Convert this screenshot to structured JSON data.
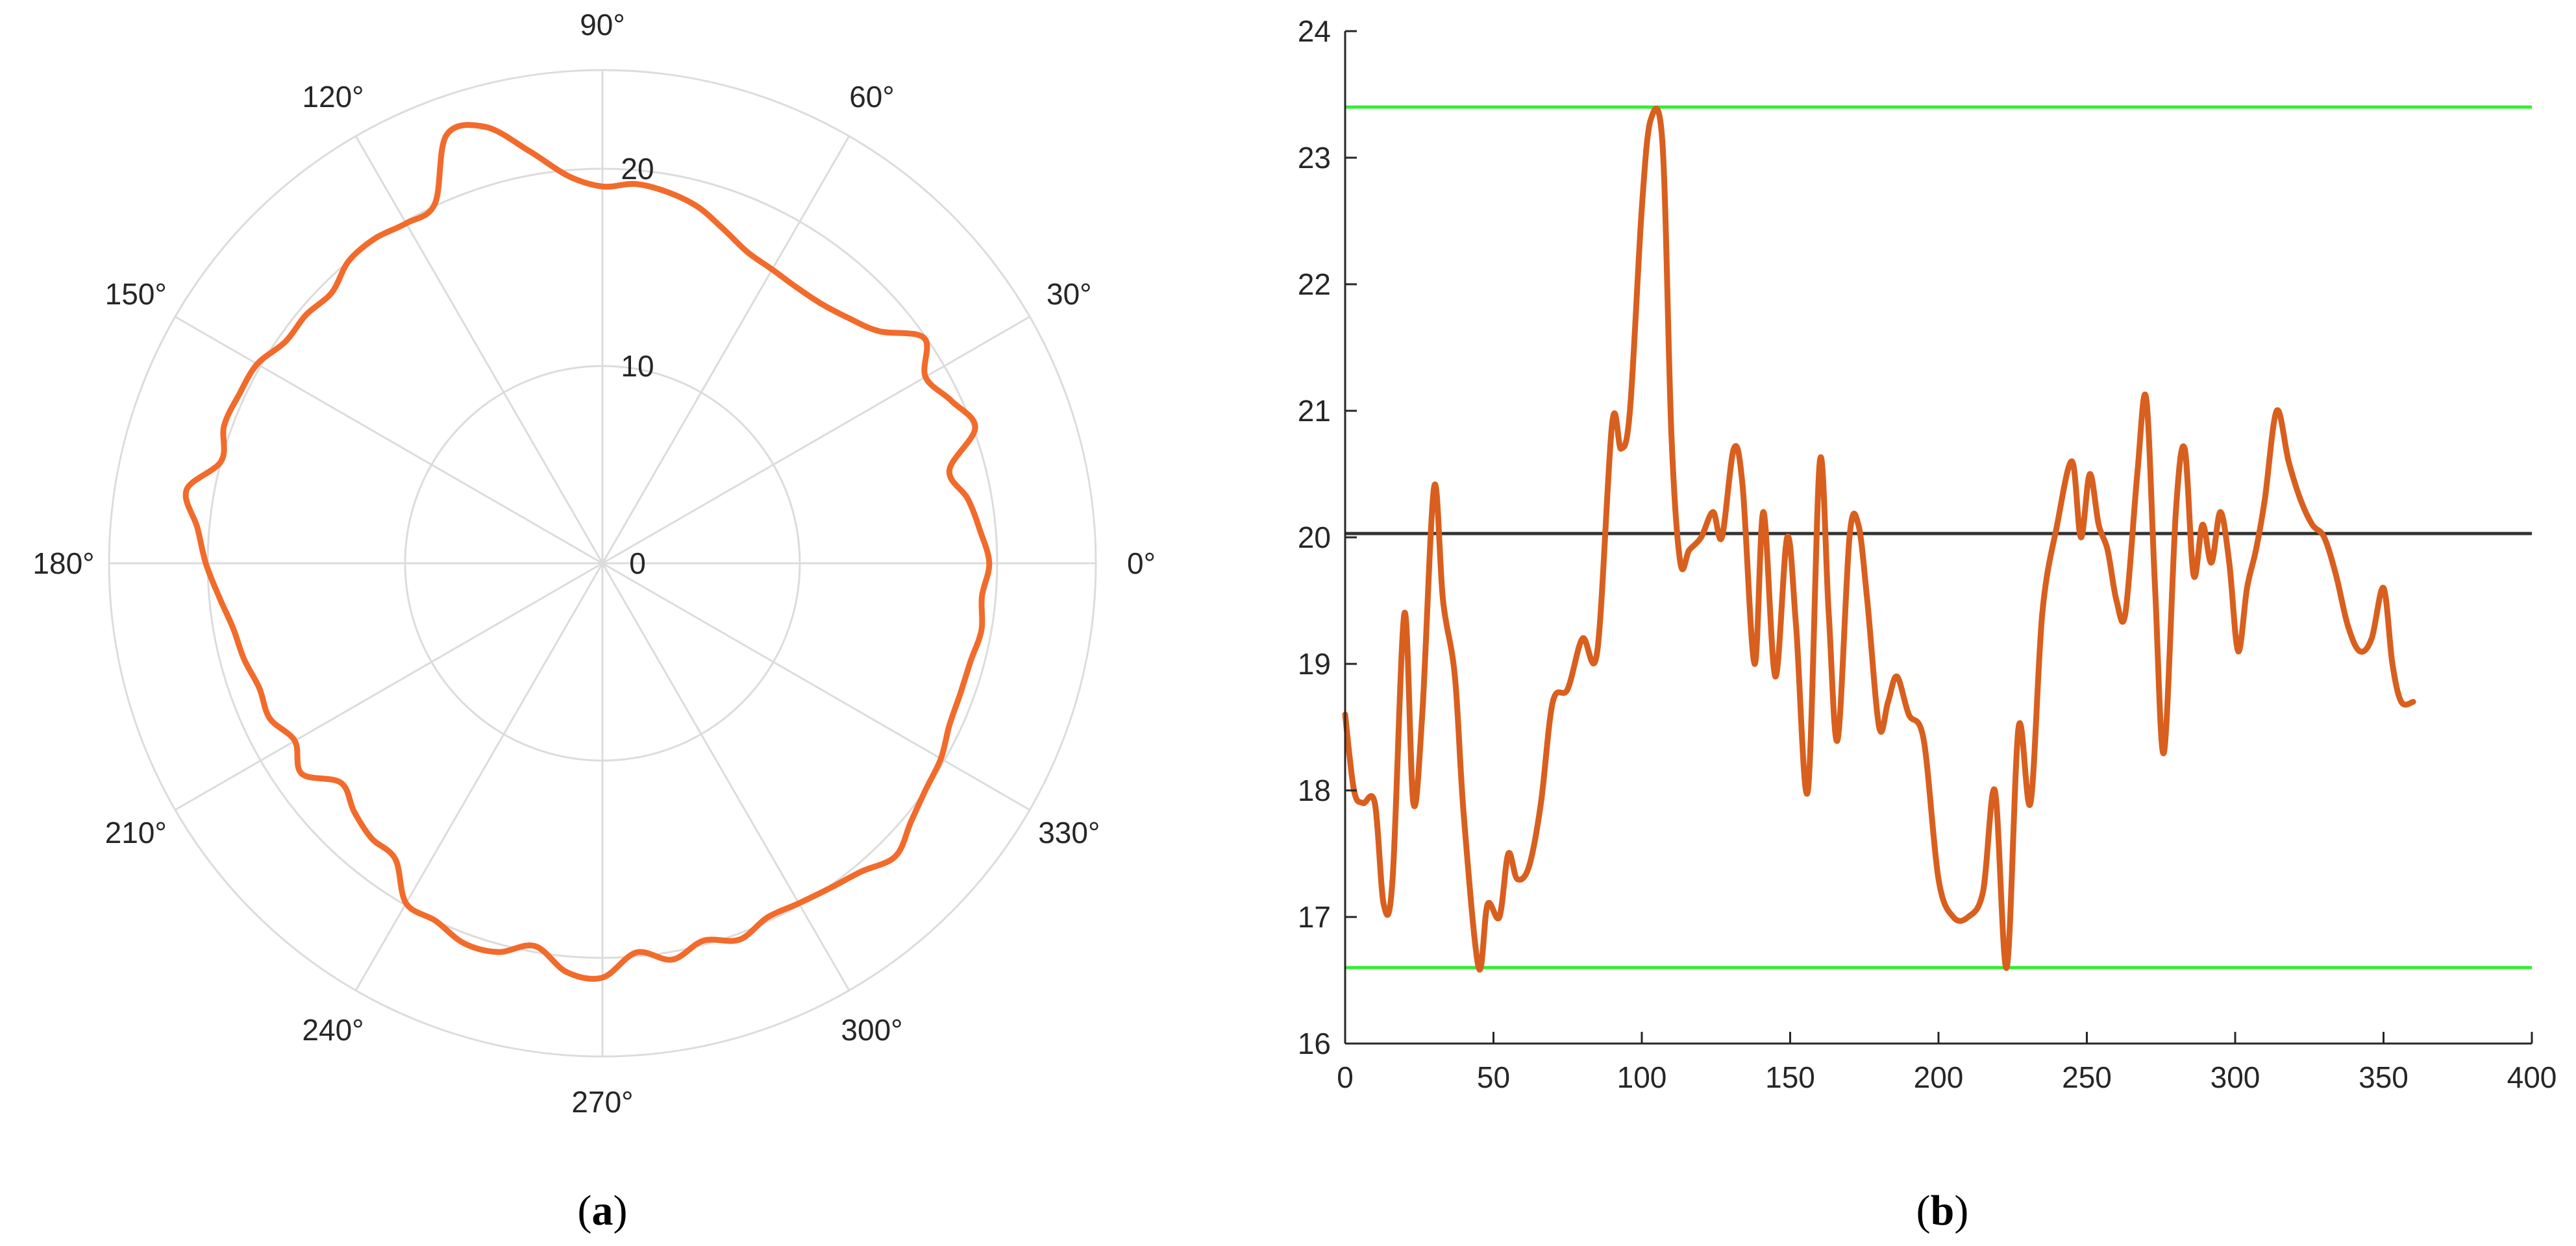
{
  "chart_data": [
    {
      "type": "line",
      "subtype": "polar",
      "caption_letter": "a",
      "angle_tick_labels": [
        "0°",
        "30°",
        "60°",
        "90°",
        "120°",
        "150°",
        "180°",
        "210°",
        "240°",
        "270°",
        "300°",
        "330°"
      ],
      "radial_tick_labels": [
        "0",
        "10",
        "20"
      ],
      "rlim": [
        0,
        25
      ],
      "grid": true,
      "series": [
        {
          "color": "#F26B2B",
          "theta": [
            0,
            5,
            10,
            15,
            20,
            25,
            30,
            35,
            40,
            45,
            50,
            55,
            60,
            65,
            70,
            75,
            80,
            85,
            90,
            95,
            100,
            105,
            110,
            115,
            120,
            125,
            130,
            135,
            140,
            145,
            150,
            155,
            160,
            165,
            170,
            175,
            180,
            185,
            190,
            195,
            200,
            205,
            210,
            215,
            220,
            225,
            230,
            235,
            240,
            245,
            250,
            255,
            260,
            265,
            270,
            275,
            280,
            285,
            290,
            295,
            300,
            305,
            310,
            315,
            320,
            325,
            330,
            335,
            340,
            345,
            350,
            355,
            360
          ],
          "r": [
            19.6,
            19.2,
            18.8,
            18.2,
            20.1,
            19.5,
            18.9,
            19.9,
            18.3,
            17.6,
            17.2,
            17.1,
            17.2,
            17.4,
            18.0,
            18.7,
            19.1,
            19.3,
            19.1,
            19.7,
            21.2,
            22.9,
            23.1,
            20.1,
            19.9,
            20.1,
            20.0,
            19.4,
            19.6,
            19.6,
            20.2,
            20.3,
            20.4,
            20.0,
            21.4,
            20.6,
            20.1,
            19.5,
            19.0,
            18.8,
            18.5,
            18.6,
            18.0,
            18.6,
            17.3,
            17.8,
            18.2,
            18.3,
            19.9,
            20.0,
            20.5,
            20.4,
            19.7,
            20.8,
            21.0,
            19.8,
            20.4,
            19.8,
            20.3,
            19.8,
            19.9,
            20.1,
            20.4,
            21.0,
            20.4,
            20.0,
            19.8,
            19.4,
            19.3,
            19.3,
            19.5,
            19.3,
            19.6
          ]
        }
      ]
    },
    {
      "type": "line",
      "caption_letter": "b",
      "xlim": [
        0,
        400
      ],
      "ylim": [
        16,
        24
      ],
      "x_ticks": [
        0,
        50,
        100,
        150,
        200,
        250,
        300,
        350,
        400
      ],
      "y_ticks": [
        16,
        17,
        18,
        19,
        20,
        21,
        22,
        23,
        24
      ],
      "reference_lines": [
        {
          "y": 23.4,
          "color": "#33EE33"
        },
        {
          "y": 20.03,
          "color": "#333333"
        },
        {
          "y": 16.6,
          "color": "#33EE33"
        }
      ],
      "series": [
        {
          "color": "#D95F1E",
          "x": [
            0,
            3,
            6,
            10,
            13,
            16,
            20,
            23,
            26,
            30,
            33,
            37,
            40,
            45,
            48,
            52,
            55,
            58,
            62,
            66,
            70,
            75,
            80,
            85,
            90,
            93,
            96,
            100,
            103,
            107,
            110,
            113,
            116,
            120,
            124,
            127,
            131,
            134,
            138,
            141,
            145,
            149,
            152,
            156,
            160,
            163,
            166,
            170,
            173,
            176,
            180,
            183,
            186,
            190,
            195,
            200,
            205,
            210,
            215,
            219,
            223,
            227,
            231,
            235,
            240,
            245,
            248,
            251,
            254,
            257,
            260,
            263,
            267,
            270,
            273,
            276,
            280,
            283,
            286,
            289,
            292,
            295,
            298,
            301,
            304,
            307,
            310,
            314,
            318,
            322,
            326,
            330,
            334,
            338,
            342,
            346,
            350,
            353,
            356,
            360
          ],
          "y": [
            18.6,
            18.0,
            17.9,
            17.9,
            17.1,
            17.3,
            19.4,
            17.9,
            18.6,
            20.4,
            19.5,
            18.9,
            17.8,
            16.6,
            17.1,
            17.0,
            17.5,
            17.3,
            17.4,
            17.9,
            18.7,
            18.8,
            19.2,
            19.1,
            20.9,
            20.7,
            21.0,
            22.6,
            23.3,
            23.1,
            20.8,
            19.8,
            19.9,
            20.0,
            20.2,
            20.0,
            20.7,
            20.4,
            19.0,
            20.2,
            18.9,
            20.0,
            19.3,
            18.0,
            20.6,
            19.4,
            18.4,
            20.0,
            20.1,
            19.5,
            18.5,
            18.7,
            18.9,
            18.6,
            18.4,
            17.3,
            17.0,
            17.0,
            17.2,
            18.0,
            16.6,
            18.5,
            17.9,
            19.4,
            20.1,
            20.6,
            20.0,
            20.5,
            20.1,
            19.9,
            19.5,
            19.4,
            20.5,
            21.1,
            19.6,
            18.3,
            20.2,
            20.7,
            19.7,
            20.1,
            19.8,
            20.2,
            19.8,
            19.1,
            19.6,
            19.9,
            20.3,
            21.0,
            20.6,
            20.3,
            20.1,
            20.0,
            19.7,
            19.3,
            19.1,
            19.2,
            19.6,
            19.0,
            18.7,
            18.7
          ]
        }
      ]
    }
  ]
}
